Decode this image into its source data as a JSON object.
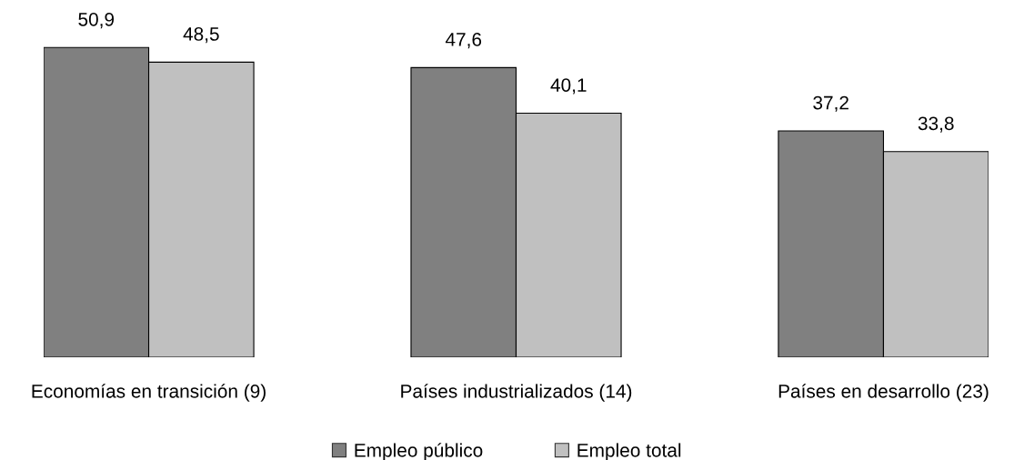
{
  "chart_data": {
    "type": "bar",
    "categories": [
      "Economías en transición (9)",
      "Países industrializados (14)",
      "Países en desarrollo (23)"
    ],
    "series": [
      {
        "name": "Empleo público",
        "color": "#808080",
        "values": [
          50.9,
          47.6,
          37.2
        ],
        "value_labels": [
          "50,9",
          "47,6",
          "37,2"
        ]
      },
      {
        "name": "Empleo total",
        "color": "#c0c0c0",
        "values": [
          48.5,
          40.1,
          33.8
        ],
        "value_labels": [
          "48,5",
          "40,1",
          "33,8"
        ]
      }
    ],
    "tick_labels": "x",
    "grid": false,
    "legend": "bottom"
  }
}
